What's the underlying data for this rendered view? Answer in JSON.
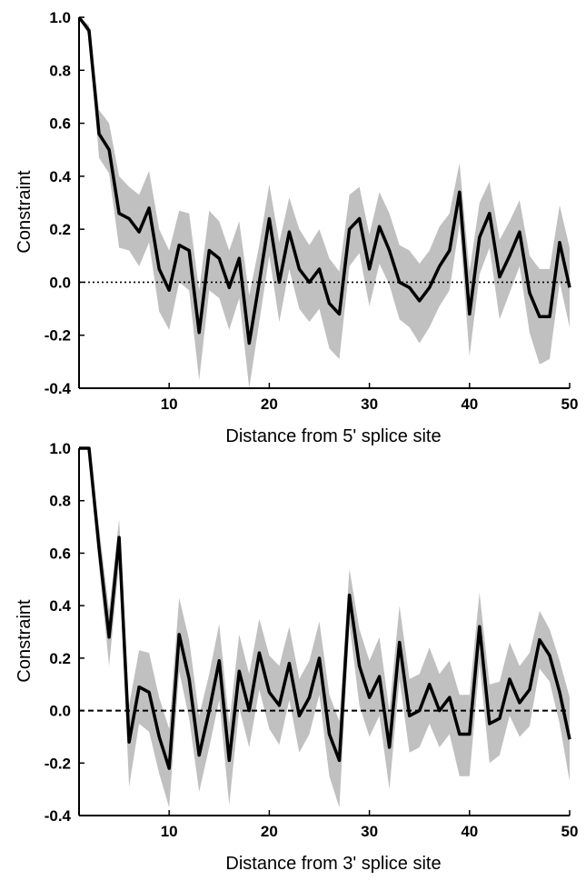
{
  "chart_data": [
    {
      "type": "line",
      "xlabel": "Distance from 5' splice site",
      "ylabel": "Constraint",
      "xlim": [
        1,
        50
      ],
      "ylim": [
        -0.4,
        1.0
      ],
      "xticks": [
        10,
        20,
        30,
        40,
        50
      ],
      "yticks": [
        1.0,
        0.8,
        0.6,
        0.4,
        0.2,
        0.0,
        -0.2,
        -0.4
      ],
      "ytick_labels": [
        "1.0",
        "0.8",
        "0.6",
        "0.4",
        "0.2",
        "0.0",
        "-0.2",
        "-0.4"
      ],
      "reference_line": {
        "y": 0.0,
        "style": "dotted"
      },
      "colors": {
        "line": "#000000",
        "band": "#c0c0c0"
      },
      "series": [
        {
          "x": [
            1,
            2,
            3,
            4,
            5,
            6,
            7,
            8,
            9,
            10,
            11,
            12,
            13,
            14,
            15,
            16,
            17,
            18,
            19,
            20,
            21,
            22,
            23,
            24,
            25,
            26,
            27,
            28,
            29,
            30,
            31,
            32,
            33,
            34,
            35,
            36,
            37,
            38,
            39,
            40,
            41,
            42,
            43,
            44,
            45,
            46,
            47,
            48,
            49,
            50
          ],
          "y": [
            1.0,
            0.95,
            0.56,
            0.5,
            0.26,
            0.24,
            0.19,
            0.28,
            0.05,
            -0.03,
            0.14,
            0.12,
            -0.19,
            0.12,
            0.09,
            -0.02,
            0.09,
            -0.23,
            0.0,
            0.24,
            0.0,
            0.19,
            0.05,
            0.0,
            0.05,
            -0.08,
            -0.12,
            0.2,
            0.24,
            0.05,
            0.21,
            0.12,
            0.0,
            -0.02,
            -0.07,
            -0.02,
            0.06,
            0.12,
            0.34,
            -0.12,
            0.17,
            0.26,
            0.02,
            0.1,
            0.19,
            -0.04,
            -0.13,
            -0.13,
            0.15,
            -0.02
          ],
          "upper": [
            1.0,
            0.97,
            0.65,
            0.6,
            0.4,
            0.36,
            0.33,
            0.42,
            0.2,
            0.12,
            0.27,
            0.26,
            -0.03,
            0.27,
            0.23,
            0.12,
            0.23,
            -0.05,
            0.14,
            0.37,
            0.15,
            0.32,
            0.2,
            0.14,
            0.2,
            0.09,
            0.04,
            0.33,
            0.36,
            0.18,
            0.34,
            0.26,
            0.14,
            0.12,
            0.07,
            0.12,
            0.21,
            0.26,
            0.45,
            0.04,
            0.3,
            0.38,
            0.16,
            0.23,
            0.31,
            0.1,
            0.05,
            0.05,
            0.29,
            0.13
          ],
          "lower": [
            1.0,
            0.93,
            0.47,
            0.41,
            0.13,
            0.12,
            0.06,
            0.15,
            -0.11,
            -0.18,
            0.0,
            -0.03,
            -0.37,
            -0.03,
            -0.06,
            -0.18,
            -0.06,
            -0.4,
            -0.15,
            0.1,
            -0.15,
            0.05,
            -0.1,
            -0.15,
            -0.1,
            -0.25,
            -0.29,
            0.06,
            0.11,
            -0.09,
            0.07,
            -0.01,
            -0.14,
            -0.17,
            -0.23,
            -0.17,
            -0.09,
            -0.03,
            0.22,
            -0.28,
            0.03,
            0.13,
            -0.14,
            -0.04,
            0.06,
            -0.19,
            -0.31,
            -0.29,
            0.0,
            -0.17
          ]
        }
      ]
    },
    {
      "type": "line",
      "xlabel": "Distance from 3' splice site",
      "ylabel": "Constraint",
      "xlim": [
        1,
        50
      ],
      "ylim": [
        -0.4,
        1.0
      ],
      "xticks": [
        10,
        20,
        30,
        40,
        50
      ],
      "yticks": [
        1.0,
        0.8,
        0.6,
        0.4,
        0.2,
        0.0,
        -0.2,
        -0.4
      ],
      "ytick_labels": [
        "1.0",
        "0.8",
        "0.6",
        "0.4",
        "0.2",
        "0.0",
        "-0.2",
        "-0.4"
      ],
      "reference_line": {
        "y": 0.0,
        "style": "dashed"
      },
      "colors": {
        "line": "#000000",
        "band": "#c0c0c0"
      },
      "series": [
        {
          "x": [
            1,
            2,
            3,
            4,
            5,
            6,
            7,
            8,
            9,
            10,
            11,
            12,
            13,
            14,
            15,
            16,
            17,
            18,
            19,
            20,
            21,
            22,
            23,
            24,
            25,
            26,
            27,
            28,
            29,
            30,
            31,
            32,
            33,
            34,
            35,
            36,
            37,
            38,
            39,
            40,
            41,
            42,
            43,
            44,
            45,
            46,
            47,
            48,
            49,
            50
          ],
          "y": [
            1.0,
            1.0,
            0.62,
            0.28,
            0.66,
            -0.12,
            0.09,
            0.07,
            -0.1,
            -0.22,
            0.29,
            0.12,
            -0.17,
            0.0,
            0.19,
            -0.19,
            0.15,
            0.0,
            0.22,
            0.07,
            0.02,
            0.18,
            -0.02,
            0.05,
            0.2,
            -0.09,
            -0.19,
            0.44,
            0.17,
            0.05,
            0.13,
            -0.14,
            0.26,
            -0.02,
            0.0,
            0.1,
            0.0,
            0.05,
            -0.09,
            -0.09,
            0.32,
            -0.05,
            -0.03,
            0.12,
            0.03,
            0.08,
            0.27,
            0.21,
            0.07,
            -0.11
          ],
          "upper": [
            1.0,
            1.0,
            0.7,
            0.38,
            0.73,
            0.02,
            0.23,
            0.22,
            0.05,
            -0.07,
            0.43,
            0.27,
            -0.02,
            0.14,
            0.33,
            -0.05,
            0.29,
            0.14,
            0.35,
            0.21,
            0.17,
            0.32,
            0.12,
            0.19,
            0.34,
            0.06,
            -0.04,
            0.54,
            0.31,
            0.19,
            0.28,
            0.0,
            0.4,
            0.12,
            0.14,
            0.24,
            0.14,
            0.19,
            0.06,
            0.06,
            0.45,
            0.1,
            0.11,
            0.26,
            0.17,
            0.22,
            0.38,
            0.31,
            0.19,
            0.05
          ],
          "lower": [
            1.0,
            1.0,
            0.55,
            0.17,
            0.56,
            -0.29,
            -0.05,
            -0.08,
            -0.24,
            -0.37,
            0.15,
            -0.03,
            -0.31,
            -0.14,
            0.04,
            -0.36,
            0.01,
            -0.14,
            0.08,
            -0.07,
            -0.13,
            0.04,
            -0.16,
            -0.09,
            0.06,
            -0.25,
            -0.37,
            0.33,
            0.02,
            -0.1,
            -0.02,
            -0.3,
            0.12,
            -0.16,
            -0.14,
            -0.05,
            -0.14,
            -0.09,
            -0.25,
            -0.25,
            0.18,
            -0.2,
            -0.17,
            -0.02,
            -0.1,
            -0.06,
            0.16,
            0.11,
            -0.05,
            -0.27
          ]
        }
      ]
    }
  ]
}
